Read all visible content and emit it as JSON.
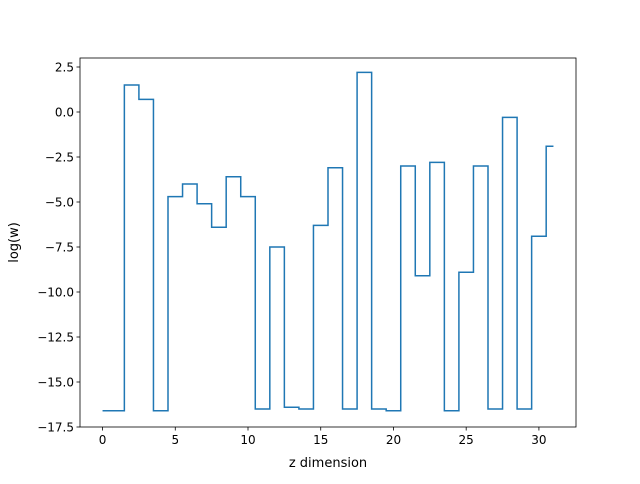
{
  "chart_data": {
    "type": "line",
    "drawstyle": "steps-mid",
    "title": "",
    "xlabel": "z dimension",
    "ylabel": "log(w)",
    "xlim": [
      -1.55,
      32.55
    ],
    "ylim": [
      -17.5,
      3.0
    ],
    "xticks": [
      0,
      5,
      10,
      15,
      20,
      25,
      30
    ],
    "xtick_labels": [
      "0",
      "5",
      "10",
      "15",
      "20",
      "25",
      "30"
    ],
    "yticks": [
      2.5,
      0.0,
      -2.5,
      -5.0,
      -7.5,
      -10.0,
      -12.5,
      -15.0,
      -17.5
    ],
    "ytick_labels": [
      "2.5",
      "0.0",
      "−2.5",
      "−5.0",
      "−7.5",
      "−10.0",
      "−12.5",
      "−15.0",
      "−17.5"
    ],
    "grid": false,
    "series": [
      {
        "color": "#1f77b4",
        "x": [
          0,
          1,
          2,
          3,
          4,
          5,
          6,
          7,
          8,
          9,
          10,
          11,
          12,
          13,
          14,
          15,
          16,
          17,
          18,
          19,
          20,
          21,
          22,
          23,
          24,
          25,
          26,
          27,
          28,
          29,
          30,
          31
        ],
        "y": [
          -16.6,
          -16.6,
          1.5,
          0.7,
          -16.6,
          -4.7,
          -4.0,
          -5.1,
          -6.4,
          -3.6,
          -4.7,
          -16.5,
          -7.5,
          -16.4,
          -16.5,
          -6.3,
          -3.1,
          -16.5,
          2.2,
          -16.5,
          -16.6,
          -3.0,
          -9.1,
          -2.8,
          -16.6,
          -8.9,
          -3.0,
          -16.5,
          -0.3,
          -16.5,
          -6.9,
          -1.9
        ]
      }
    ]
  }
}
